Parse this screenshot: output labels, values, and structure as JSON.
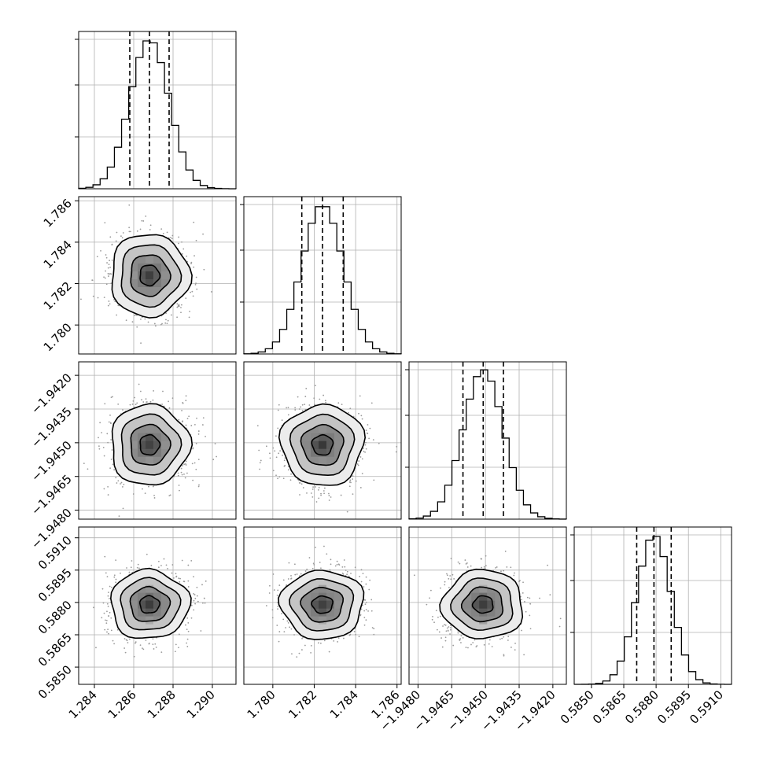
{
  "chart_data": {
    "type": "corner",
    "title": "",
    "parameters": [
      {
        "index": 0,
        "mean": 1.2868,
        "sigma": 0.001,
        "quantiles": [
          1.2858,
          1.2868,
          1.2878
        ],
        "range": [
          1.2832,
          1.2912
        ],
        "ticks": [
          "1.284",
          "1.286",
          "1.288",
          "1.290"
        ]
      },
      {
        "index": 1,
        "mean": 1.7824,
        "sigma": 0.001,
        "quantiles": [
          1.7814,
          1.7824,
          1.7834
        ],
        "range": [
          1.7786,
          1.7862
        ],
        "ticks": [
          "1.780",
          "1.782",
          "1.784",
          "1.786"
        ]
      },
      {
        "index": 2,
        "mean": -1.9451,
        "sigma": 0.0009,
        "quantiles": [
          -1.946,
          -1.9451,
          -1.9442
        ],
        "range": [
          -1.9484,
          -1.9414
        ],
        "ticks": [
          "−1.9480",
          "−1.9465",
          "−1.9450",
          "−1.9435",
          "−1.9420"
        ]
      },
      {
        "index": 3,
        "mean": 0.5879,
        "sigma": 0.0008,
        "quantiles": [
          0.5871,
          0.5879,
          0.5887
        ],
        "range": [
          0.5842,
          0.5915
        ],
        "ticks": [
          "0.5850",
          "0.5865",
          "0.5880",
          "0.5895",
          "0.5910"
        ]
      }
    ],
    "histogram_ylim": [
      0,
      1.0
    ],
    "histogram_gridlines": [
      0.33,
      0.66,
      0.95
    ],
    "contour_levels": [
      "0.5 sigma",
      "1 sigma",
      "1.5 sigma",
      "2 sigma"
    ],
    "grid": true,
    "colors": {
      "line": "#000000",
      "grid": "#b0b0b0",
      "points": "#9a9a9a"
    }
  }
}
